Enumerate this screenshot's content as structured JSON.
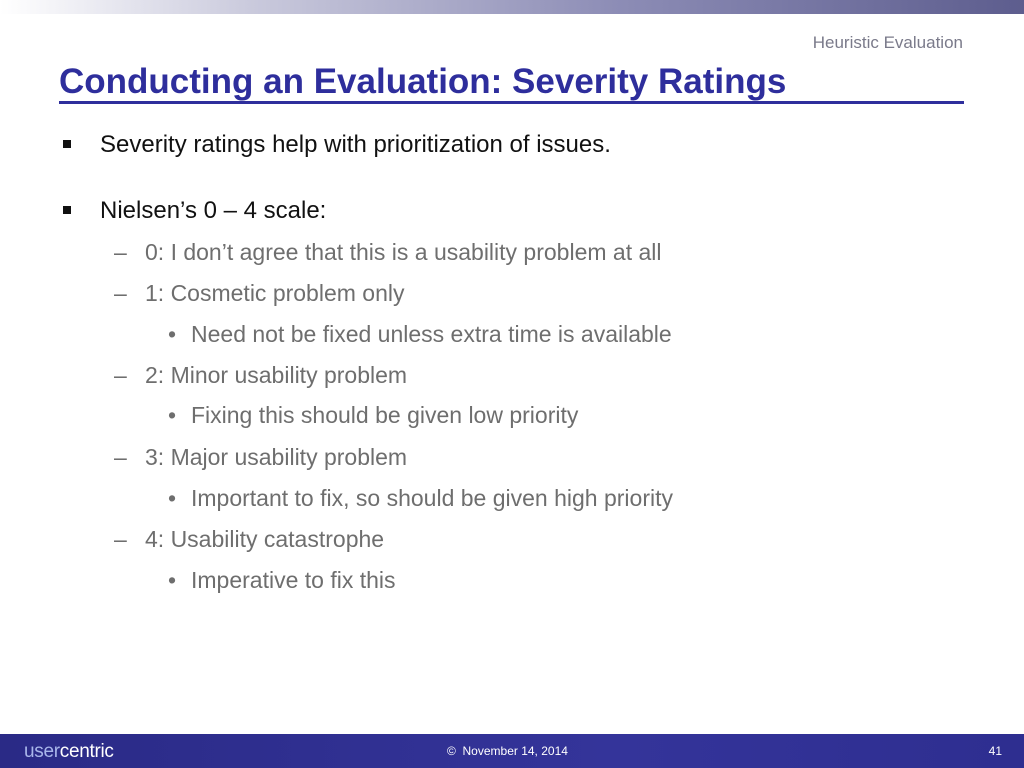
{
  "header": {
    "label": "Heuristic Evaluation"
  },
  "slide": {
    "title": "Conducting an Evaluation: Severity Ratings",
    "bullets": [
      {
        "text": "Severity ratings help with prioritization of issues."
      },
      {
        "text": "Nielsen’s 0 – 4 scale:",
        "items": [
          {
            "marker": "–",
            "text": "0: I don’t agree that this is a usability problem at all"
          },
          {
            "marker": "–",
            "text": "1: Cosmetic problem only",
            "sub": [
              {
                "marker": "•",
                "text": "Need not be fixed unless extra time is available"
              }
            ]
          },
          {
            "marker": "–",
            "text": "2: Minor usability problem",
            "sub": [
              {
                "marker": "•",
                "text": "Fixing this should be given low priority"
              }
            ]
          },
          {
            "marker": "–",
            "text": "3: Major usability problem",
            "sub": [
              {
                "marker": "•",
                "text": "Important to fix, so should be given high priority"
              }
            ]
          },
          {
            "marker": "–",
            "text": "4: Usability catastrophe",
            "sub": [
              {
                "marker": "•",
                "text": "Imperative to fix this"
              }
            ]
          }
        ]
      }
    ]
  },
  "footer": {
    "logo_user": "user",
    "logo_centric": "centric",
    "copyright_symbol": "©",
    "date": "November 14, 2014",
    "page_number": "41"
  },
  "colors": {
    "title": "#2e2e9c",
    "footer_bar": "#2a2a86",
    "body_text": "#111111",
    "sub_text": "#6e6e6e"
  }
}
